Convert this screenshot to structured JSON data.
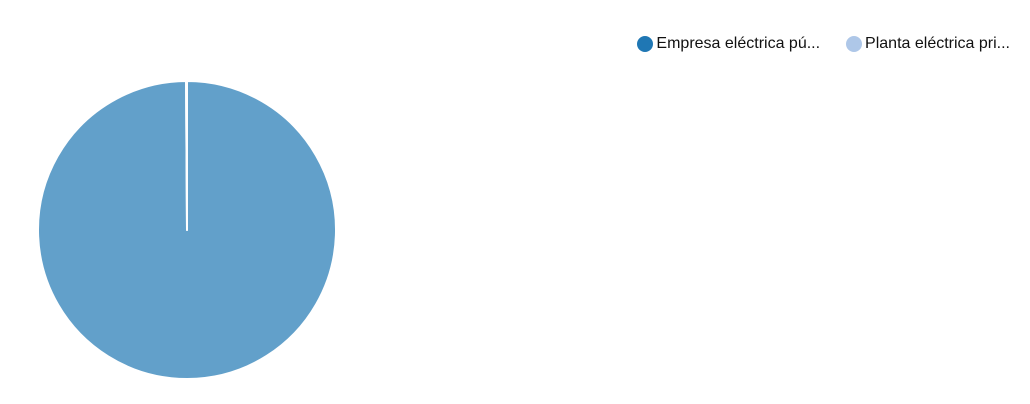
{
  "chart_data": {
    "type": "pie",
    "title": "",
    "slices": [
      {
        "label": "Empresa eléctrica pú...",
        "value": 99.9,
        "color": "#1f77b4"
      },
      {
        "label": "Planta eléctrica pri...",
        "value": 0.1,
        "color": "#aec7e8"
      }
    ],
    "legend_position": "top-right",
    "slice_opacity": 0.7
  }
}
